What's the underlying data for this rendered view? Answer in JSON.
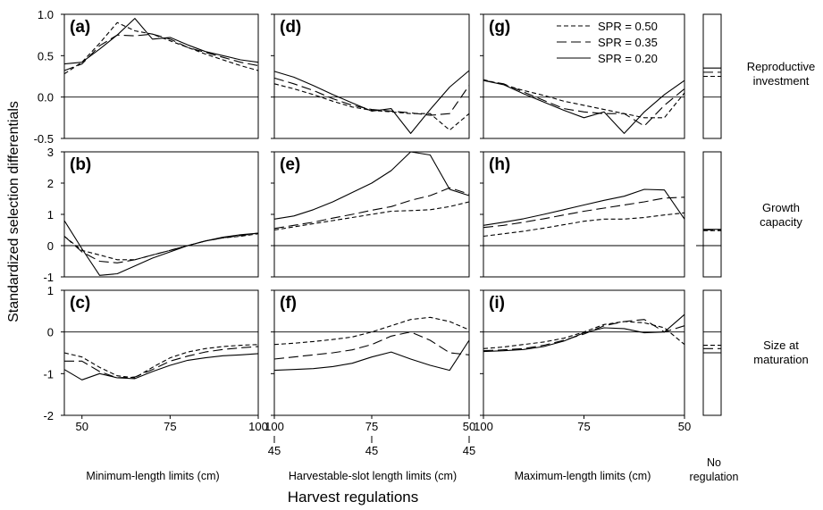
{
  "chart_data": {
    "type": "line",
    "ylabel": "Standardized selection differentials",
    "xlabel": "Harvest regulations",
    "legend": {
      "placement": "top-right of panel (g)",
      "entries": [
        {
          "label": "SPR = 0.50",
          "dash": "5,3"
        },
        {
          "label": "SPR = 0.35",
          "dash": "11,5"
        },
        {
          "label": "SPR = 0.20",
          "dash": ""
        }
      ]
    },
    "row_labels": [
      [
        "Reproductive",
        "investment"
      ],
      [
        "Growth",
        "capacity"
      ],
      [
        "Size at",
        "maturation"
      ]
    ],
    "column_labels": [
      "Minimum-length limits (cm)",
      "Harvestable-slot length limits (cm)",
      "Maximum-length limits (cm)",
      "No regulation"
    ],
    "no_regulation_label": [
      "No",
      "regulation"
    ],
    "rows": [
      {
        "ylim": [
          -0.5,
          1.0
        ],
        "yticks": [
          -0.5,
          0.0,
          0.5,
          1.0
        ],
        "yticklabels": [
          "-0.5",
          "0.0",
          "0.5",
          "1.0"
        ]
      },
      {
        "ylim": [
          -1,
          3
        ],
        "yticks": [
          -1,
          0,
          1,
          2,
          3
        ],
        "yticklabels": [
          "-1",
          "0",
          "1",
          "2",
          "3"
        ]
      },
      {
        "ylim": [
          -2,
          1
        ],
        "yticks": [
          -2,
          -1,
          0,
          1
        ],
        "yticklabels": [
          "-2",
          "-1",
          "0",
          "1"
        ]
      }
    ],
    "columns": [
      {
        "xlim": [
          45,
          100
        ],
        "reversed": false,
        "xticks": [
          50,
          75,
          100
        ],
        "xticklabels": [
          "50",
          "75",
          "100"
        ]
      },
      {
        "xlim": [
          50,
          100
        ],
        "reversed": true,
        "xticks": [
          100,
          75,
          50
        ],
        "xticklabels": [
          "100",
          "75",
          "50"
        ],
        "lower_bound_label": "45"
      },
      {
        "xlim": [
          50,
          100
        ],
        "reversed": true,
        "xticks": [
          100,
          75,
          50
        ],
        "xticklabels": [
          "100",
          "75",
          "50"
        ]
      }
    ],
    "x_points": {
      "min": [
        45,
        50,
        55,
        60,
        65,
        70,
        75,
        80,
        85,
        90,
        95,
        100
      ],
      "slot": [
        100,
        95,
        90,
        85,
        80,
        75,
        70,
        65,
        60,
        55,
        50
      ],
      "max": [
        100,
        95,
        90,
        85,
        80,
        75,
        70,
        65,
        60,
        55,
        50
      ]
    },
    "panels": [
      {
        "label": "(a)",
        "row": 0,
        "col": 0,
        "x": "min",
        "series": [
          [
            0.28,
            0.42,
            0.65,
            0.9,
            0.8,
            0.76,
            0.68,
            0.6,
            0.52,
            0.45,
            0.38,
            0.32
          ],
          [
            0.32,
            0.4,
            0.62,
            0.75,
            0.74,
            0.76,
            0.7,
            0.6,
            0.54,
            0.48,
            0.42,
            0.38
          ],
          [
            0.4,
            0.42,
            0.58,
            0.75,
            0.95,
            0.7,
            0.72,
            0.63,
            0.55,
            0.5,
            0.45,
            0.42
          ]
        ]
      },
      {
        "label": "(b)",
        "row": 1,
        "col": 0,
        "x": "min",
        "series": [
          [
            0.3,
            -0.15,
            -0.3,
            -0.45,
            -0.45,
            -0.3,
            -0.15,
            0.0,
            0.15,
            0.25,
            0.3,
            0.38
          ],
          [
            0.3,
            -0.2,
            -0.5,
            -0.55,
            -0.45,
            -0.3,
            -0.15,
            0.0,
            0.15,
            0.25,
            0.32,
            0.4
          ],
          [
            0.8,
            -0.1,
            -0.95,
            -0.9,
            -0.65,
            -0.4,
            -0.2,
            0.0,
            0.15,
            0.27,
            0.35,
            0.4
          ]
        ]
      },
      {
        "label": "(c)",
        "row": 2,
        "col": 0,
        "x": "min",
        "series": [
          [
            -0.5,
            -0.6,
            -0.85,
            -1.05,
            -1.1,
            -0.85,
            -0.62,
            -0.48,
            -0.4,
            -0.35,
            -0.32,
            -0.3
          ],
          [
            -0.7,
            -0.7,
            -0.95,
            -1.1,
            -1.08,
            -0.9,
            -0.7,
            -0.58,
            -0.48,
            -0.42,
            -0.38,
            -0.35
          ],
          [
            -0.9,
            -1.15,
            -1.0,
            -1.1,
            -1.12,
            -0.95,
            -0.8,
            -0.68,
            -0.62,
            -0.57,
            -0.55,
            -0.52
          ]
        ]
      },
      {
        "label": "(d)",
        "row": 0,
        "col": 1,
        "x": "slot",
        "series": [
          [
            0.16,
            0.1,
            0.03,
            -0.05,
            -0.12,
            -0.16,
            -0.18,
            -0.2,
            -0.2,
            -0.4,
            -0.2
          ],
          [
            0.23,
            0.16,
            0.08,
            -0.02,
            -0.1,
            -0.15,
            -0.17,
            -0.19,
            -0.22,
            -0.2,
            0.14
          ],
          [
            0.31,
            0.24,
            0.14,
            0.03,
            -0.07,
            -0.17,
            -0.14,
            -0.44,
            -0.15,
            0.12,
            0.32
          ]
        ]
      },
      {
        "label": "(e)",
        "row": 1,
        "col": 1,
        "x": "slot",
        "series": [
          [
            0.5,
            0.6,
            0.7,
            0.8,
            0.9,
            1.0,
            1.1,
            1.12,
            1.15,
            1.25,
            1.4
          ],
          [
            0.55,
            0.65,
            0.75,
            0.88,
            1.0,
            1.13,
            1.25,
            1.45,
            1.6,
            1.85,
            1.65
          ],
          [
            0.85,
            0.95,
            1.15,
            1.4,
            1.7,
            2.0,
            2.4,
            3.0,
            2.9,
            1.8,
            1.6
          ]
        ]
      },
      {
        "label": "(f)",
        "row": 2,
        "col": 1,
        "x": "slot",
        "series": [
          [
            -0.3,
            -0.27,
            -0.23,
            -0.18,
            -0.12,
            0.0,
            0.15,
            0.3,
            0.35,
            0.25,
            0.05
          ],
          [
            -0.65,
            -0.6,
            -0.55,
            -0.5,
            -0.43,
            -0.3,
            -0.1,
            0.0,
            -0.2,
            -0.5,
            -0.55
          ],
          [
            -0.92,
            -0.9,
            -0.88,
            -0.83,
            -0.75,
            -0.6,
            -0.48,
            -0.65,
            -0.8,
            -0.92,
            -0.2
          ]
        ]
      },
      {
        "label": "(g)",
        "row": 0,
        "col": 2,
        "x": "max",
        "series": [
          [
            0.21,
            0.15,
            0.08,
            0.02,
            -0.05,
            -0.1,
            -0.15,
            -0.2,
            -0.25,
            -0.25,
            0.05
          ],
          [
            0.2,
            0.16,
            0.06,
            -0.04,
            -0.14,
            -0.18,
            -0.2,
            -0.2,
            -0.35,
            -0.1,
            0.1
          ],
          [
            0.2,
            0.15,
            0.04,
            -0.06,
            -0.16,
            -0.25,
            -0.18,
            -0.44,
            -0.18,
            0.03,
            0.2
          ]
        ]
      },
      {
        "label": "(h)",
        "row": 1,
        "col": 2,
        "x": "max",
        "series": [
          [
            0.3,
            0.38,
            0.46,
            0.56,
            0.67,
            0.78,
            0.85,
            0.85,
            0.9,
            0.98,
            1.05
          ],
          [
            0.58,
            0.65,
            0.75,
            0.86,
            0.98,
            1.1,
            1.2,
            1.3,
            1.4,
            1.52,
            1.55
          ],
          [
            0.65,
            0.75,
            0.86,
            1.0,
            1.15,
            1.3,
            1.45,
            1.58,
            1.8,
            1.78,
            0.85
          ]
        ]
      },
      {
        "label": "(i)",
        "row": 2,
        "col": 2,
        "x": "max",
        "series": [
          [
            -0.4,
            -0.36,
            -0.3,
            -0.24,
            -0.15,
            0.0,
            0.18,
            0.25,
            0.22,
            0.1,
            -0.3
          ],
          [
            -0.45,
            -0.43,
            -0.4,
            -0.32,
            -0.2,
            -0.05,
            0.15,
            0.25,
            0.3,
            0.0,
            0.15
          ],
          [
            -0.47,
            -0.45,
            -0.42,
            -0.35,
            -0.22,
            -0.02,
            0.1,
            0.08,
            -0.02,
            0.0,
            0.42
          ]
        ]
      }
    ],
    "no_regulation": [
      {
        "row": 0,
        "values": [
          0.25,
          0.3,
          0.35
        ]
      },
      {
        "row": 1,
        "values": [
          0.48,
          0.5,
          0.52
        ]
      },
      {
        "row": 2,
        "values": [
          -0.32,
          -0.4,
          -0.5
        ]
      }
    ]
  }
}
